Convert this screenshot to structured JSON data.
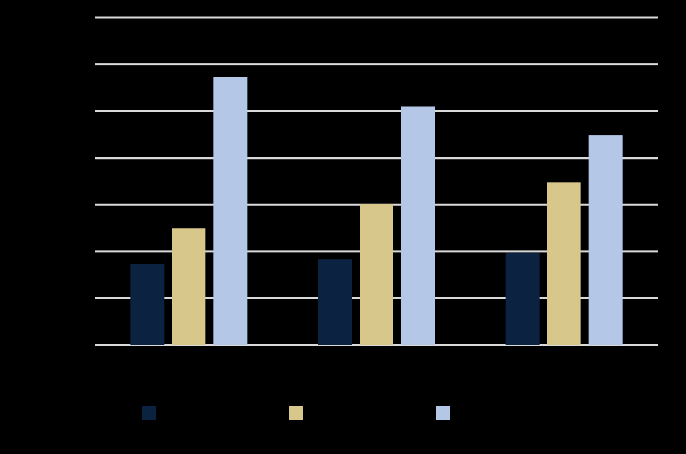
{
  "chart_data": {
    "type": "bar",
    "categories": [
      null,
      null,
      null
    ],
    "series": [
      {
        "color": "#0b2341",
        "values": [
          1.73,
          1.83,
          1.97
        ]
      },
      {
        "color": "#d8c78b",
        "values": [
          2.49,
          3.02,
          3.48
        ]
      },
      {
        "color": "#b4c7e7",
        "values": [
          5.73,
          5.1,
          4.49
        ]
      }
    ],
    "ylim": [
      0,
      7
    ],
    "yticks": [
      0,
      1,
      2,
      3,
      4,
      5,
      6,
      7
    ],
    "grid": true,
    "grid_color": "#d9d9d9",
    "legend": "bottom"
  }
}
